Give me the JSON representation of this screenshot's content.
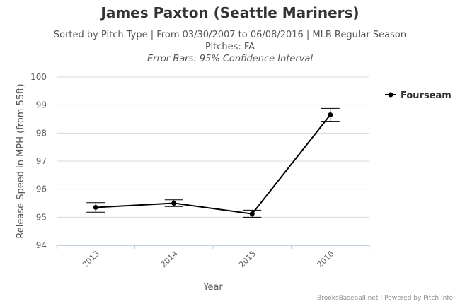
{
  "chart_data": {
    "type": "line",
    "title": "James Paxton (Seattle Mariners)",
    "subtitle_lines": [
      "Sorted by Pitch Type | From 03/30/2007 to 06/08/2016 | MLB Regular Season",
      "Pitches: FA",
      "Error Bars: 95% Confidence Interval"
    ],
    "xlabel": "Year",
    "ylabel": "Release Speed in MPH (from 55ft)",
    "categories": [
      "2013",
      "2014",
      "2015",
      "2016"
    ],
    "ylim": [
      94,
      100
    ],
    "yticks": [
      94,
      95,
      96,
      97,
      98,
      99,
      100
    ],
    "grid": true,
    "legend_position": "top-right",
    "series": [
      {
        "name": "Fourseam",
        "color": "#000000",
        "values": [
          95.35,
          95.5,
          95.12,
          98.65
        ],
        "error_low": [
          95.18,
          95.38,
          95.0,
          98.42
        ],
        "error_high": [
          95.52,
          95.62,
          95.25,
          98.88
        ]
      }
    ],
    "credit": "BrooksBaseball.net | Powered by Pitch Info"
  }
}
